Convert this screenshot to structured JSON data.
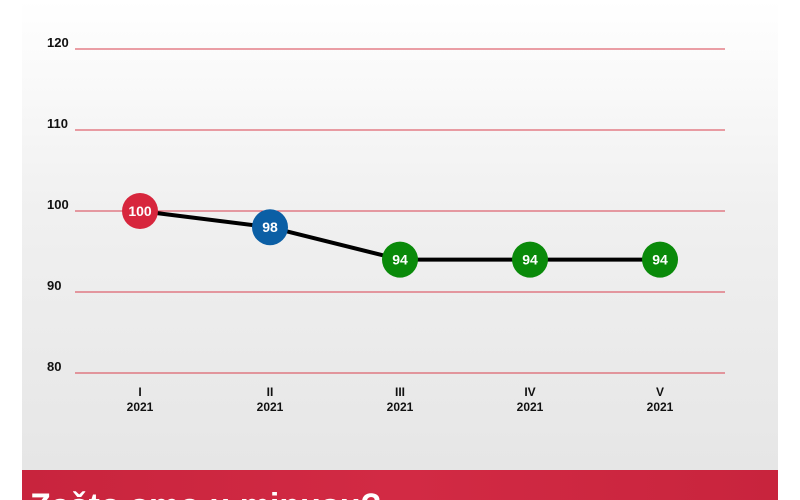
{
  "chart_data": {
    "type": "line",
    "title": "",
    "xlabel": "",
    "ylabel": "",
    "categories": [
      {
        "line1": "I",
        "line2": "2021"
      },
      {
        "line1": "II",
        "line2": "2021"
      },
      {
        "line1": "III",
        "line2": "2021"
      },
      {
        "line1": "IV",
        "line2": "2021"
      },
      {
        "line1": "V",
        "line2": "2021"
      }
    ],
    "values": [
      100,
      98,
      94,
      94,
      94
    ],
    "point_colors": [
      "#d7263d",
      "#0b5fa5",
      "#0a8a0a",
      "#0a8a0a",
      "#0a8a0a"
    ],
    "line_color": "#000000",
    "gridline_color": "#d9404f",
    "ylim": [
      80,
      120
    ],
    "yticks": [
      "80",
      "90",
      "100",
      "110",
      "120"
    ],
    "grid": true,
    "legend": "none"
  },
  "footer": {
    "text": "Zašto smo u minusu?",
    "background": "#c8243d"
  }
}
